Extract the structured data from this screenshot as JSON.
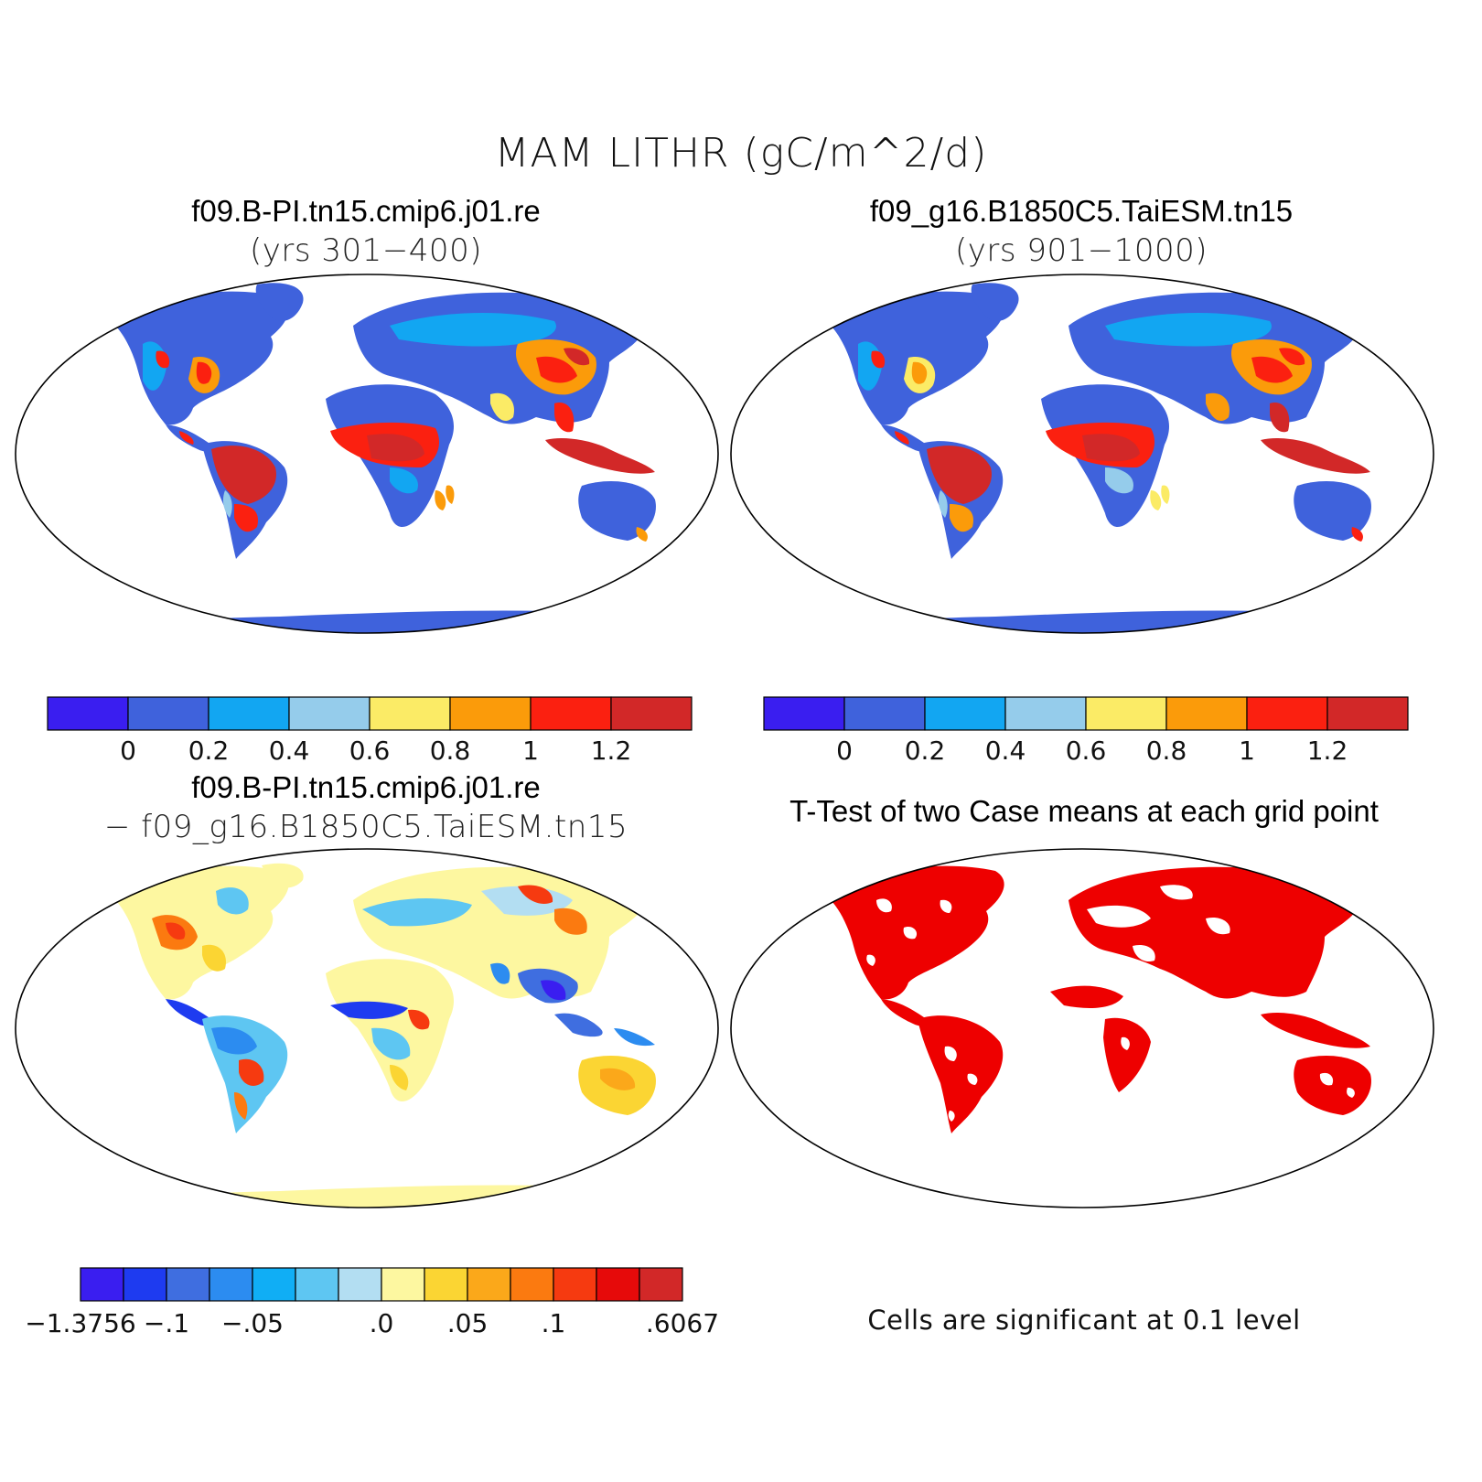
{
  "figure": {
    "title": "MAM LITHR (gC/m^2/d)"
  },
  "panels": {
    "case1": {
      "title": "f09.B-PI.tn15.cmip6.j01.re",
      "subtitle": "(yrs 301−400)"
    },
    "case2": {
      "title": "f09_g16.B1850C5.TaiESM.tn15",
      "subtitle": "(yrs 901−1000)"
    },
    "diff": {
      "title": "f09.B-PI.tn15.cmip6.j01.re",
      "subtitle": "− f09_g16.B1850C5.TaiESM.tn15"
    },
    "ttest": {
      "title": "T-Test of two Case means at each grid point",
      "note": "Cells are significant at 0.1 level"
    }
  },
  "colorbars": {
    "abs": {
      "colors": [
        "#3a1ef0",
        "#3f62dc",
        "#12a6f2",
        "#95cceb",
        "#fbeb66",
        "#fb9b0a",
        "#fb2010",
        "#d22828"
      ],
      "labels": [
        "0",
        "0.2",
        "0.4",
        "0.6",
        "0.8",
        "1",
        "1.2"
      ]
    },
    "diff": {
      "colors": [
        "#3a1ef0",
        "#1e3bf0",
        "#3f6ee0",
        "#2c8cf0",
        "#10aef5",
        "#5ec6f2",
        "#b3def2",
        "#fdf7a0",
        "#fbd533",
        "#fba81a",
        "#fb7a10",
        "#f63a10",
        "#e60a0a",
        "#d22828"
      ],
      "labels": [
        "−1.3756",
        "−.1",
        "−.05",
        ".0",
        ".05",
        ".1",
        ".6067"
      ]
    }
  },
  "map_colors": {
    "land_low": "#3f62dc",
    "mid_light": "#95cceb",
    "cyan": "#12a6f2",
    "yellow": "#fbeb66",
    "orange": "#fb9b0a",
    "red": "#fb2010",
    "dark_red": "#d22828",
    "diff_neutral": "#fdf7a0",
    "ttest_significant": "#ee0000"
  }
}
